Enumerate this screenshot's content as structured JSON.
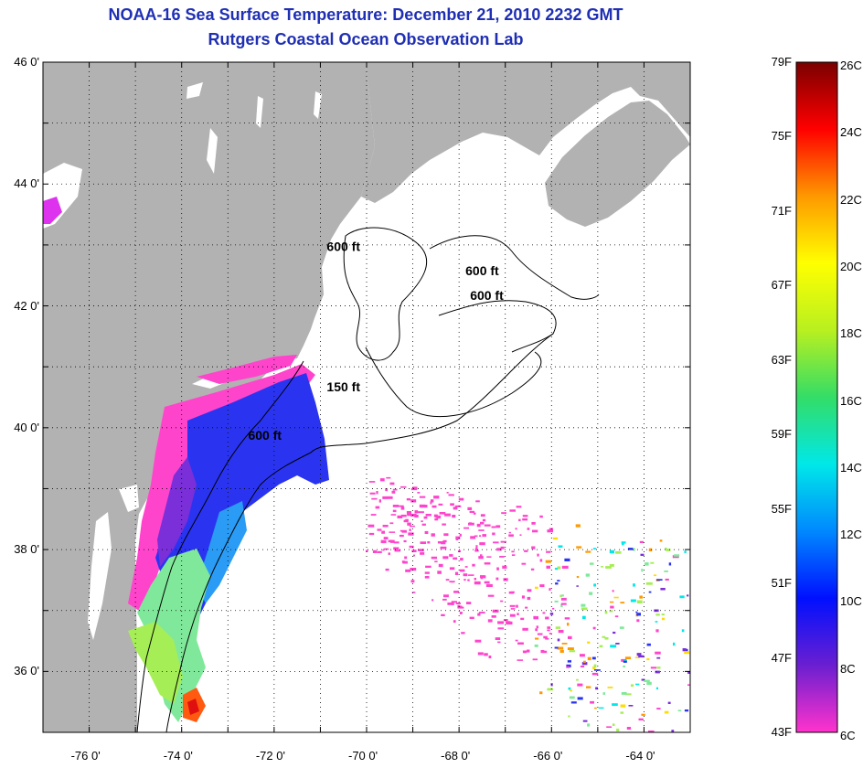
{
  "title": "NOAA-16 Sea Surface Temperature:  December 21, 2010 2232 GMT",
  "subtitle": "Rutgers Coastal Ocean Observation Lab",
  "map": {
    "lon_range": [
      -77,
      -63
    ],
    "lat_range": [
      35,
      46
    ],
    "lon_ticks": [
      "-76 0'",
      "-74 0'",
      "-72 0'",
      "-70 0'",
      "-68 0'",
      "-66 0'",
      "-64 0'"
    ],
    "lat_ticks": [
      "46 0'",
      "44 0'",
      "42 0'",
      "40 0'",
      "38 0'",
      "36 0'"
    ],
    "colors": {
      "land": "#b2b2b2",
      "ocean": "#ffffff",
      "frame": "#000000"
    },
    "contour_labels": [
      {
        "text": "600 ft",
        "lon": -70.5,
        "lat": 42.9
      },
      {
        "text": "600 ft",
        "lon": -67.5,
        "lat": 42.5
      },
      {
        "text": "600 ft",
        "lon": -67.4,
        "lat": 42.1
      },
      {
        "text": "150 ft",
        "lon": -70.5,
        "lat": 40.6
      },
      {
        "text": "600 ft",
        "lon": -72.2,
        "lat": 39.8
      }
    ]
  },
  "colorbar": {
    "fahrenheit": [
      "79F",
      "75F",
      "71F",
      "67F",
      "63F",
      "59F",
      "55F",
      "51F",
      "47F",
      "43F"
    ],
    "celsius": [
      "26C",
      "24C",
      "22C",
      "20C",
      "18C",
      "16C",
      "14C",
      "12C",
      "10C",
      "8C",
      "6C"
    ],
    "colors": [
      "#ff33cc",
      "#6a1fd0",
      "#0010ff",
      "#0088ff",
      "#00e8e8",
      "#33dd66",
      "#b8f020",
      "#ffff00",
      "#ff9900",
      "#ff0000",
      "#7a0000"
    ]
  }
}
